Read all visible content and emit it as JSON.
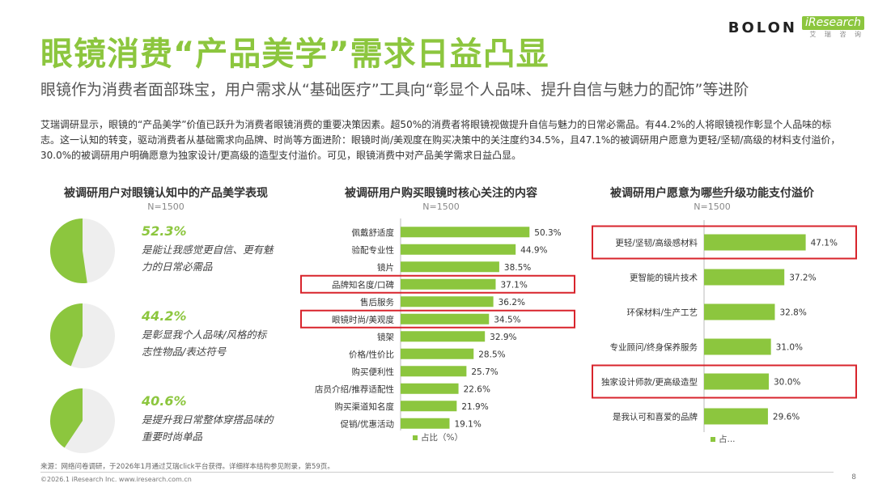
{
  "header": {
    "title": "眼镜消费“产品美学”需求日益凸显",
    "subtitle": "眼镜作为消费者面部珠宝，用户需求从“基础医疗”工具向“彰显个人品味、提升自信与魅力的配饰”等进阶",
    "body": "艾瑞调研显示，眼镜的“产品美学”价值已跃升为消费者眼镜消费的重要决策因素。超50%的消费者将眼镜视做提升自信与魅力的日常必需品。有44.2%的人将眼镜视作彰显个人品味的标志。这一认知的转变，驱动消费者从基础需求向品牌、时尚等方面进阶：眼镜时尚/美观度在购买决策中的关注度约34.5%，且47.1%的被调研用户愿意为更轻/坚韧/高级的材料支付溢价，30.0%的被调研用户明确愿意为独家设计/更高级的造型支付溢价。可见，眼镜消费中对产品美学需求日益凸显。",
    "logo_brand": "BOLON",
    "logo_partner": "iResearch",
    "logo_partner_sub": "艾 瑞 咨 询"
  },
  "colors": {
    "accent": "#8cc63e",
    "pie_rest": "#eeeeee",
    "highlight": "#d8242c"
  },
  "chart_data": [
    {
      "type": "pie",
      "title": "被调研用户对眼镜认知中的产品美学表现",
      "subtitle": "N=1500",
      "series": [
        {
          "pct_label": "52.3%",
          "value": 52.3,
          "desc": "是能让我感觉更自信、更有魅力的日常必需品"
        },
        {
          "pct_label": "44.2%",
          "value": 44.2,
          "desc": "是彰显我个人品味/风格的标志性物品/表达符号"
        },
        {
          "pct_label": "40.6%",
          "value": 40.6,
          "desc": "是提升我日常整体穿搭品味的重要时尚单品"
        }
      ]
    },
    {
      "type": "bar",
      "title": "被调研用户购买眼镜时核心关注的内容",
      "subtitle": "N=1500",
      "categories": [
        "佩戴舒适度",
        "验配专业性",
        "镜片",
        "品牌知名度/口碑",
        "售后服务",
        "眼镜时尚/美观度",
        "镜架",
        "价格/性价比",
        "购买便利性",
        "店员介绍/推荐适配性",
        "购买渠道知名度",
        "促销/优惠活动"
      ],
      "values": [
        50.3,
        44.9,
        38.5,
        37.1,
        36.2,
        34.5,
        32.9,
        28.5,
        25.7,
        22.6,
        21.9,
        19.1
      ],
      "value_labels": [
        "50.3%",
        "44.9%",
        "38.5%",
        "37.1%",
        "36.2%",
        "34.5%",
        "32.9%",
        "28.5%",
        "25.7%",
        "22.6%",
        "21.9%",
        "19.1%"
      ],
      "highlighted": [
        "品牌知名度/口碑",
        "眼镜时尚/美观度"
      ],
      "legend": "占比（%）",
      "xlim": [
        0,
        60
      ]
    },
    {
      "type": "bar",
      "title": "被调研用户愿意为哪些升级功能支付溢价",
      "subtitle": "N=1500",
      "categories": [
        "更轻/坚韧/高级感材料",
        "更智能的镜片技术",
        "环保材料/生产工艺",
        "专业顾问/终身保养服务",
        "独家设计师款/更高级造型",
        "是我认可和喜爱的品牌"
      ],
      "values": [
        47.1,
        37.2,
        32.8,
        31.0,
        30.0,
        29.6
      ],
      "value_labels": [
        "47.1%",
        "37.2%",
        "32.8%",
        "31.0%",
        "30.0%",
        "29.6%"
      ],
      "highlighted": [
        "更轻/坚韧/高级感材料",
        "独家设计师款/更高级造型"
      ],
      "legend": "占...",
      "xlim": [
        0,
        60
      ]
    }
  ],
  "footer": {
    "source": "来源：网络问卷调研，于2026年1月通过艾瑞click平台获得。详细样本结构参见附录，第59页。",
    "copyright": "©2026.1 iResearch Inc.                    www.iresearch.com.cn",
    "page": "8"
  }
}
